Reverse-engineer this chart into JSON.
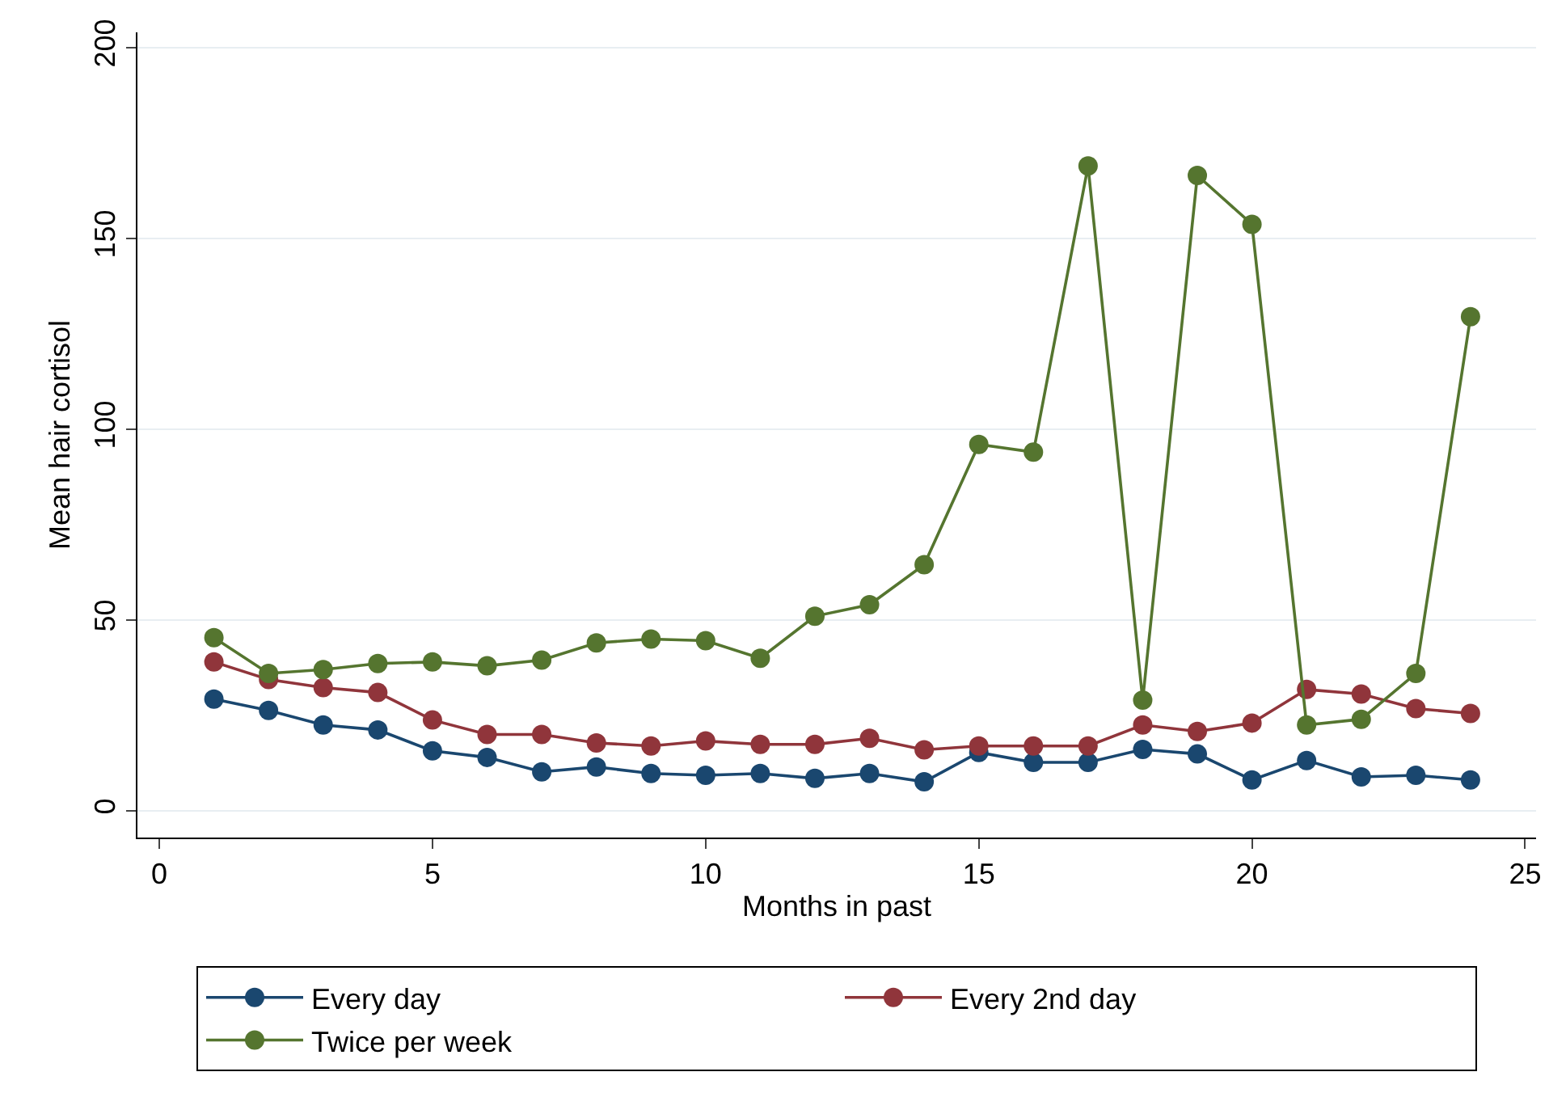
{
  "chart_data": {
    "type": "line",
    "xlabel": "Months in past",
    "ylabel": "Mean hair cortisol",
    "x": [
      1,
      2,
      3,
      4,
      5,
      6,
      7,
      8,
      9,
      10,
      11,
      12,
      13,
      14,
      15,
      16,
      17,
      18,
      19,
      20,
      21,
      22,
      23,
      24
    ],
    "series": [
      {
        "name": "Every day",
        "color": "#1a476f",
        "values": [
          29.3,
          26.3,
          22.5,
          21.2,
          15.7,
          14,
          10.2,
          11.5,
          9.8,
          9.3,
          9.8,
          8.5,
          9.8,
          7.6,
          15.3,
          12.7,
          12.7,
          16.1,
          14.9,
          8.1,
          13.2,
          8.9,
          9.3,
          8.1
        ]
      },
      {
        "name": "Every 2nd day",
        "color": "#90353b",
        "values": [
          39,
          34.4,
          32.3,
          31,
          23.8,
          20,
          20,
          17.8,
          17,
          18.3,
          17.4,
          17.4,
          19,
          16,
          17,
          17,
          17,
          22.5,
          20.8,
          23,
          31.8,
          30.6,
          26.8,
          25.5
        ]
      },
      {
        "name": "Twice per week",
        "color": "#55752f",
        "values": [
          45.4,
          36,
          37,
          38.6,
          39,
          38,
          39.5,
          44,
          45,
          44.6,
          40,
          51,
          54,
          64.5,
          96,
          94,
          169,
          29,
          166.5,
          153.7,
          22.5,
          24,
          36,
          129.5
        ]
      }
    ],
    "xlim": [
      -0.4,
      25.2
    ],
    "xticks": [
      0,
      5,
      10,
      15,
      20,
      25
    ],
    "ylim": [
      -7,
      204
    ],
    "yticks": [
      0,
      50,
      100,
      150,
      200
    ],
    "grid": "y",
    "legend": "bottom",
    "marker": "circle",
    "line_style": "solid"
  }
}
